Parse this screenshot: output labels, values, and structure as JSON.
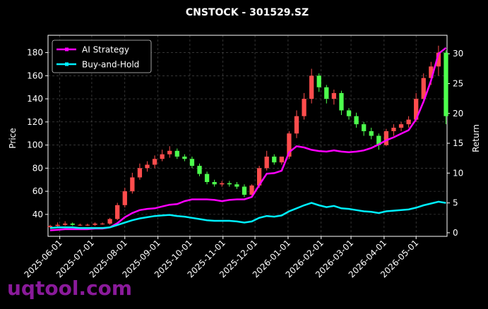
{
  "chart_data": {
    "type": "candlestick",
    "title": "CNSTOCK - 301529.SZ",
    "ylabel": "Price",
    "y2label": "Return",
    "watermark": "uqtool.com",
    "xlim": [
      "2025-05-21",
      "2026-05-30"
    ],
    "x": [
      "2025-05-23",
      "2025-05-30",
      "2025-06-06",
      "2025-06-13",
      "2025-06-20",
      "2025-06-27",
      "2025-07-04",
      "2025-07-11",
      "2025-07-18",
      "2025-07-25",
      "2025-08-01",
      "2025-08-08",
      "2025-08-15",
      "2025-08-22",
      "2025-08-29",
      "2025-09-05",
      "2025-09-12",
      "2025-09-19",
      "2025-09-26",
      "2025-10-03",
      "2025-10-10",
      "2025-10-17",
      "2025-10-24",
      "2025-10-31",
      "2025-11-07",
      "2025-11-14",
      "2025-11-21",
      "2025-11-28",
      "2025-12-05",
      "2025-12-12",
      "2025-12-19",
      "2025-12-26",
      "2026-01-02",
      "2026-01-09",
      "2026-01-16",
      "2026-01-23",
      "2026-01-30",
      "2026-02-06",
      "2026-02-13",
      "2026-02-20",
      "2026-02-27",
      "2026-03-06",
      "2026-03-13",
      "2026-03-20",
      "2026-03-27",
      "2026-04-03",
      "2026-04-10",
      "2026-04-17",
      "2026-04-24",
      "2026-05-01",
      "2026-05-08",
      "2026-05-15",
      "2026-05-22",
      "2026-05-29"
    ],
    "open": [
      29,
      30,
      31,
      32,
      31,
      31,
      31,
      32,
      32,
      36,
      48,
      60,
      72,
      80,
      83,
      88,
      92,
      95,
      90,
      88,
      82,
      75,
      68,
      66,
      67,
      66,
      64,
      57,
      65,
      80,
      90,
      85,
      90,
      110,
      125,
      140,
      160,
      150,
      140,
      145,
      130,
      125,
      118,
      112,
      108,
      100,
      112,
      115,
      118,
      122,
      140,
      158,
      168,
      180
    ],
    "high": [
      31,
      33,
      34,
      33,
      32,
      32,
      33,
      33,
      37,
      50,
      63,
      76,
      84,
      86,
      91,
      96,
      99,
      97,
      92,
      90,
      84,
      77,
      70,
      69,
      69,
      68,
      66,
      66,
      82,
      95,
      92,
      90,
      112,
      130,
      145,
      166,
      162,
      152,
      148,
      147,
      132,
      128,
      120,
      115,
      110,
      114,
      118,
      120,
      125,
      145,
      162,
      172,
      186,
      182
    ],
    "low": [
      28,
      29,
      30,
      30,
      30,
      30,
      30,
      31,
      31,
      35,
      46,
      58,
      70,
      77,
      80,
      86,
      89,
      88,
      86,
      80,
      73,
      66,
      64,
      64,
      64,
      62,
      55,
      55,
      63,
      78,
      83,
      83,
      88,
      106,
      122,
      136,
      146,
      136,
      135,
      126,
      122,
      115,
      108,
      105,
      96,
      99,
      108,
      112,
      115,
      120,
      138,
      152,
      160,
      118
    ],
    "close": [
      30,
      31,
      32,
      31,
      31,
      31,
      32,
      32,
      36,
      48,
      60,
      72,
      80,
      83,
      88,
      92,
      95,
      90,
      88,
      82,
      75,
      68,
      66,
      67,
      66,
      64,
      57,
      65,
      80,
      90,
      85,
      90,
      110,
      125,
      140,
      160,
      150,
      140,
      145,
      130,
      125,
      118,
      112,
      108,
      100,
      112,
      115,
      118,
      122,
      140,
      158,
      168,
      180,
      125
    ],
    "up_color": "#ff4d4d",
    "down_color": "#4dff4d",
    "series": [
      {
        "name": "AI Strategy",
        "color": "#ff00ff",
        "axis": "y2",
        "values": [
          0.4,
          0.5,
          0.6,
          0.6,
          0.6,
          0.6,
          0.7,
          0.7,
          0.9,
          1.6,
          2.6,
          3.3,
          3.8,
          4.0,
          4.1,
          4.4,
          4.7,
          4.8,
          5.3,
          5.6,
          5.6,
          5.6,
          5.5,
          5.3,
          5.5,
          5.6,
          5.6,
          6.0,
          8.0,
          9.9,
          10.0,
          10.4,
          13.5,
          14.5,
          14.3,
          13.9,
          13.7,
          13.6,
          13.8,
          13.6,
          13.5,
          13.6,
          13.8,
          14.2,
          14.8,
          15.5,
          16.0,
          16.6,
          17.2,
          19.0,
          22.0,
          25.5,
          30.0,
          31.0
        ]
      },
      {
        "name": "Buy-and-Hold",
        "color": "#00f0ff",
        "axis": "y2",
        "values": [
          0.8,
          0.9,
          0.9,
          0.9,
          0.8,
          0.8,
          0.8,
          0.8,
          0.9,
          1.3,
          1.7,
          2.1,
          2.4,
          2.6,
          2.8,
          2.9,
          3.0,
          2.8,
          2.7,
          2.5,
          2.3,
          2.1,
          2.0,
          2.0,
          2.0,
          1.9,
          1.7,
          1.9,
          2.5,
          2.8,
          2.7,
          2.9,
          3.6,
          4.1,
          4.6,
          5.0,
          4.6,
          4.3,
          4.5,
          4.1,
          4.0,
          3.8,
          3.6,
          3.5,
          3.3,
          3.6,
          3.7,
          3.8,
          3.9,
          4.2,
          4.6,
          4.9,
          5.2,
          5.0
        ]
      }
    ],
    "ylim": [
      21,
      195
    ],
    "yticks": [
      40,
      60,
      80,
      100,
      120,
      140,
      160,
      180
    ],
    "y2lim": [
      -0.6,
      33.1
    ],
    "y2ticks": [
      0,
      5,
      10,
      15,
      20,
      25,
      30
    ],
    "xticks": [
      "2025-06-01",
      "2025-07-01",
      "2025-08-01",
      "2025-09-01",
      "2025-10-01",
      "2025-11-01",
      "2025-12-01",
      "2026-01-01",
      "2026-02-01",
      "2026-03-01",
      "2026-04-01",
      "2026-05-01"
    ],
    "grid": true,
    "legend": "upper-left"
  }
}
